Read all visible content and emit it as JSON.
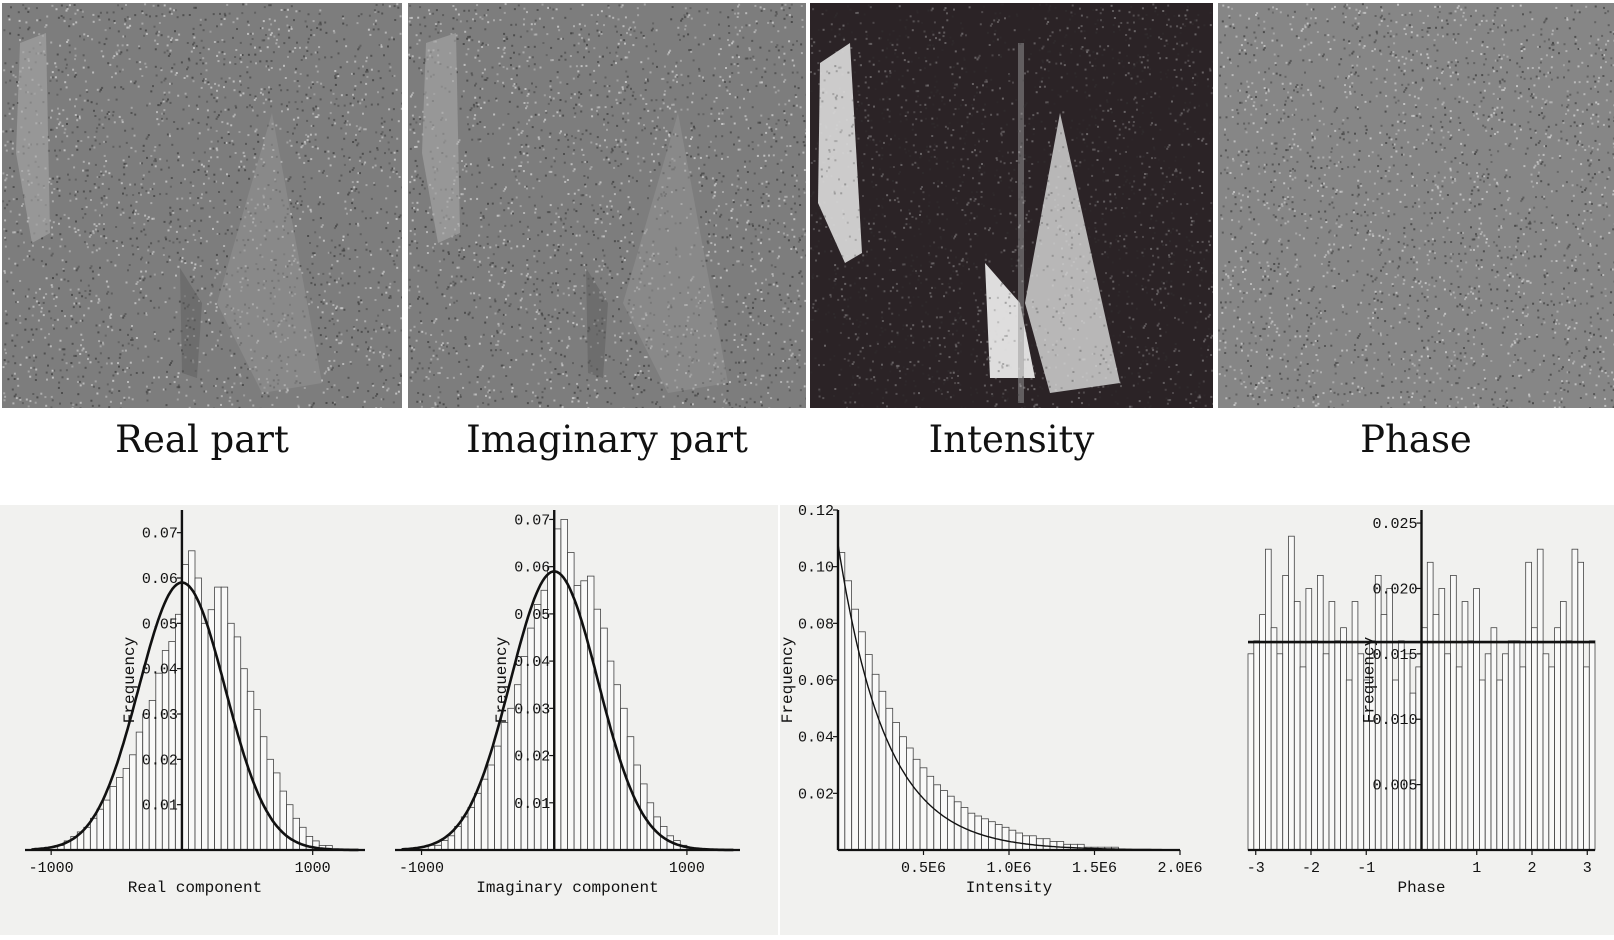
{
  "captions": [
    "Real part",
    "Imaginary part",
    "Intensity",
    "Phase"
  ],
  "colors": {
    "paper": "#f1f1ef",
    "ink": "#111111",
    "bar_fill": "#ffffff",
    "speckle_gray": "#7d7d7d",
    "intensity_dark": "#2b2326"
  },
  "chart_data": [
    {
      "type": "bar",
      "title": "",
      "xlabel": "Real component",
      "ylabel": "Frequency",
      "xlim": [
        -1200,
        1400
      ],
      "ylim": [
        0,
        0.075
      ],
      "xticks": [
        -1000,
        1000
      ],
      "xtick_labels": [
        "-1000",
        "1000"
      ],
      "yticks": [
        0.01,
        0.02,
        0.03,
        0.04,
        0.05,
        0.06,
        0.07
      ],
      "ytick_labels": [
        "0.01",
        "0.02",
        "0.03",
        "0.04",
        "0.05",
        "0.06",
        "0.07"
      ],
      "bin_start": -1100,
      "bin_width": 50,
      "values": [
        0.0,
        0.0,
        0.0,
        0.001,
        0.002,
        0.003,
        0.004,
        0.005,
        0.007,
        0.009,
        0.011,
        0.014,
        0.016,
        0.018,
        0.021,
        0.026,
        0.03,
        0.033,
        0.039,
        0.044,
        0.046,
        0.052,
        0.063,
        0.066,
        0.06,
        0.05,
        0.053,
        0.058,
        0.058,
        0.05,
        0.047,
        0.04,
        0.035,
        0.031,
        0.025,
        0.02,
        0.017,
        0.013,
        0.01,
        0.007,
        0.005,
        0.003,
        0.002,
        0.001,
        0.001,
        0.0,
        0.0,
        0.0
      ],
      "curve": {
        "type": "gaussian",
        "mean": 0,
        "sd": 330,
        "peak": 0.059,
        "x_range": [
          -1150,
          1350
        ]
      }
    },
    {
      "type": "bar",
      "title": "",
      "xlabel": "Imaginary component",
      "ylabel": "Frequency",
      "xlim": [
        -1200,
        1400
      ],
      "ylim": [
        0,
        0.072
      ],
      "xticks": [
        -1000,
        1000
      ],
      "xtick_labels": [
        "-1000",
        "1000"
      ],
      "yticks": [
        0.01,
        0.02,
        0.03,
        0.04,
        0.05,
        0.06,
        0.07
      ],
      "ytick_labels": [
        "0.01",
        "0.02",
        "0.03",
        "0.04",
        "0.05",
        "0.06",
        "0.07"
      ],
      "bin_start": -1100,
      "bin_width": 50,
      "values": [
        0.0,
        0.0,
        0.0,
        0.001,
        0.001,
        0.002,
        0.003,
        0.005,
        0.007,
        0.009,
        0.012,
        0.015,
        0.018,
        0.022,
        0.027,
        0.03,
        0.035,
        0.041,
        0.047,
        0.052,
        0.055,
        0.06,
        0.068,
        0.07,
        0.063,
        0.056,
        0.057,
        0.058,
        0.051,
        0.047,
        0.04,
        0.035,
        0.03,
        0.024,
        0.018,
        0.014,
        0.01,
        0.007,
        0.005,
        0.003,
        0.002,
        0.001,
        0.0,
        0.0,
        0.0,
        0.0,
        0.0,
        0.0
      ],
      "curve": {
        "type": "gaussian",
        "mean": 0,
        "sd": 330,
        "peak": 0.059,
        "x_range": [
          -1150,
          1350
        ]
      }
    },
    {
      "type": "bar",
      "title": "",
      "xlabel": "Intensity",
      "ylabel": "Frequency",
      "xlim": [
        0,
        2000000
      ],
      "ylim": [
        0,
        0.12
      ],
      "xticks": [
        500000,
        1000000,
        1500000,
        2000000
      ],
      "xtick_labels": [
        "0.5E6",
        "1.0E6",
        "1.5E6",
        "2.0E6"
      ],
      "yticks": [
        0.02,
        0.04,
        0.06,
        0.08,
        0.1,
        0.12
      ],
      "ytick_labels": [
        "0.02",
        "0.04",
        "0.06",
        "0.08",
        "0.10",
        "0.12"
      ],
      "bin_start": 0,
      "bin_width": 40000,
      "values": [
        0.105,
        0.095,
        0.085,
        0.077,
        0.069,
        0.062,
        0.056,
        0.05,
        0.045,
        0.04,
        0.036,
        0.032,
        0.029,
        0.026,
        0.023,
        0.021,
        0.019,
        0.017,
        0.015,
        0.013,
        0.012,
        0.011,
        0.01,
        0.009,
        0.008,
        0.007,
        0.006,
        0.005,
        0.005,
        0.004,
        0.004,
        0.003,
        0.003,
        0.002,
        0.002,
        0.002,
        0.001,
        0.001,
        0.001,
        0.001,
        0.001,
        0.0,
        0.0,
        0.0,
        0.0
      ],
      "curve": {
        "type": "exponential",
        "y0": 0.108,
        "scale": 280000,
        "x_range": [
          0,
          2000000
        ]
      }
    },
    {
      "type": "bar",
      "title": "",
      "xlabel": "Phase",
      "ylabel": "Frequency",
      "xlim": [
        -3.14,
        3.14
      ],
      "ylim": [
        0,
        0.026
      ],
      "xticks": [
        -3,
        -2,
        -1,
        1,
        2,
        3
      ],
      "xtick_labels": [
        "-3",
        "-2",
        "-1",
        "1",
        "2",
        "3"
      ],
      "yticks": [
        0.005,
        0.01,
        0.015,
        0.02,
        0.025
      ],
      "ytick_labels": [
        "0.005",
        "0.010",
        "0.015",
        "0.020",
        "0.025"
      ],
      "bin_start": -3.14,
      "bin_width": 0.1047,
      "values": [
        0.015,
        0.016,
        0.018,
        0.023,
        0.017,
        0.015,
        0.021,
        0.024,
        0.019,
        0.014,
        0.02,
        0.016,
        0.021,
        0.015,
        0.019,
        0.016,
        0.017,
        0.013,
        0.019,
        0.015,
        0.013,
        0.016,
        0.021,
        0.018,
        0.02,
        0.013,
        0.016,
        0.015,
        0.012,
        0.014,
        0.017,
        0.022,
        0.018,
        0.02,
        0.015,
        0.021,
        0.014,
        0.019,
        0.016,
        0.02,
        0.013,
        0.015,
        0.017,
        0.013,
        0.015,
        0.016,
        0.016,
        0.014,
        0.022,
        0.017,
        0.023,
        0.015,
        0.014,
        0.017,
        0.019,
        0.016,
        0.023,
        0.022,
        0.014,
        0.016
      ],
      "curve": {
        "type": "constant",
        "value": 0.0159,
        "x_range": [
          -3.14,
          3.14
        ]
      }
    }
  ]
}
